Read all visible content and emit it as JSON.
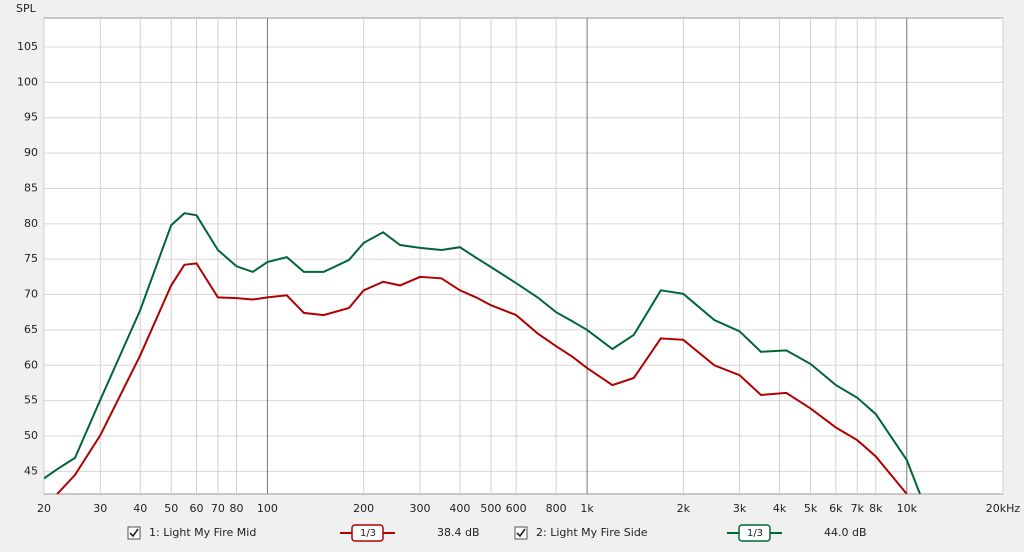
{
  "chart_data": {
    "type": "line",
    "y_label": "SPL",
    "log_x": true,
    "grid": true,
    "x": [
      20,
      22,
      25,
      30,
      40,
      50,
      55,
      60,
      70,
      80,
      90,
      100,
      115,
      130,
      150,
      180,
      200,
      230,
      260,
      300,
      350,
      400,
      450,
      500,
      600,
      700,
      800,
      900,
      1000,
      1200,
      1400,
      1700,
      2000,
      2500,
      3000,
      3500,
      4200,
      5000,
      6000,
      7000,
      8000,
      10000,
      11000
    ],
    "series": [
      {
        "name": "1: Light My Fire Mid",
        "color": "#b00000",
        "smoothing": "1/3",
        "level": "38.4 dB",
        "values": [
          null,
          41.8,
          44.5,
          50.1,
          61.4,
          71.3,
          74.2,
          74.4,
          69.6,
          69.5,
          69.3,
          69.6,
          69.9,
          67.4,
          67.1,
          68.1,
          70.6,
          71.8,
          71.3,
          72.5,
          72.3,
          70.6,
          69.6,
          68.5,
          67.1,
          64.5,
          62.7,
          61.2,
          59.6,
          57.2,
          58.2,
          63.8,
          63.6,
          60.0,
          58.6,
          55.8,
          56.1,
          53.9,
          51.2,
          49.4,
          47.1,
          41.8,
          null
        ]
      },
      {
        "name": "2: Light My Fire Side",
        "color": "#006633",
        "smoothing": "1/3",
        "level": "44.0 dB",
        "values": [
          44.0,
          45.3,
          46.9,
          55.1,
          67.8,
          79.8,
          81.5,
          81.2,
          76.3,
          74.0,
          73.2,
          74.6,
          75.3,
          73.2,
          73.2,
          74.9,
          77.3,
          78.8,
          77.0,
          76.6,
          76.3,
          76.7,
          75.2,
          73.9,
          71.6,
          69.6,
          67.5,
          66.2,
          65.0,
          62.3,
          64.3,
          70.6,
          70.1,
          66.4,
          64.8,
          61.9,
          62.1,
          60.2,
          57.2,
          55.4,
          53.1,
          46.6,
          41.8
        ]
      }
    ],
    "xlim": [
      20,
      20000
    ],
    "ylim": [
      41.8,
      109.1
    ],
    "yticks": [
      45,
      50,
      55,
      60,
      65,
      70,
      75,
      80,
      85,
      90,
      95,
      100,
      105
    ],
    "xticks": [
      20,
      30,
      40,
      50,
      60,
      70,
      80,
      100,
      200,
      300,
      400,
      500,
      600,
      800,
      {
        "value": 1000,
        "label": "1k"
      },
      {
        "value": 2000,
        "label": "2k"
      },
      {
        "value": 3000,
        "label": "3k"
      },
      {
        "value": 4000,
        "label": "4k"
      },
      {
        "value": 5000,
        "label": "5k"
      },
      {
        "value": 6000,
        "label": "6k"
      },
      {
        "value": 7000,
        "label": "7k"
      },
      {
        "value": 8000,
        "label": "8k"
      },
      {
        "value": 10000,
        "label": "10k"
      },
      {
        "value": 20000,
        "label": "20kHz"
      }
    ]
  }
}
